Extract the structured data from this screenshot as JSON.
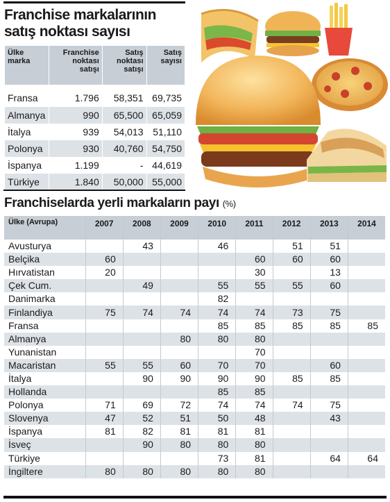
{
  "table1": {
    "title": "Franchise markalarının satış noktası sayısı",
    "headers": [
      "Ülke marka",
      "Franchise noktası satışı",
      "Satış noktası satışı",
      "Satış sayısı"
    ],
    "rows": [
      [
        "Fransa",
        "1.796",
        "58,351",
        "69,735"
      ],
      [
        "Almanya",
        "990",
        "65,500",
        "65,059"
      ],
      [
        "İtalya",
        "939",
        "54,013",
        "51,110"
      ],
      [
        "Polonya",
        "930",
        "40,760",
        "54,750"
      ],
      [
        "İspanya",
        "1.199",
        "-",
        "44,619"
      ],
      [
        "Türkiye",
        "1.840",
        "50,000",
        "55,000"
      ]
    ]
  },
  "table2": {
    "title": "Franchiselarda yerli markaların payı",
    "unit": "(%)",
    "headers": [
      "Ülke (Avrupa)",
      "2007",
      "2008",
      "2009",
      "2010",
      "2011",
      "2012",
      "2013",
      "2014"
    ],
    "rows": [
      [
        "Avusturya",
        "",
        "43",
        "",
        "46",
        "",
        "51",
        "51",
        ""
      ],
      [
        "Belçika",
        "60",
        "",
        "",
        "",
        "60",
        "60",
        "60",
        ""
      ],
      [
        "Hırvatistan",
        "20",
        "",
        "",
        "",
        "30",
        "",
        "13",
        ""
      ],
      [
        "Çek Cum.",
        "",
        "49",
        "",
        "55",
        "55",
        "55",
        "60",
        ""
      ],
      [
        "Danimarka",
        "",
        "",
        "",
        "82",
        "",
        "",
        "",
        ""
      ],
      [
        "Finlandiya",
        "75",
        "74",
        "74",
        "74",
        "74",
        "73",
        "75",
        ""
      ],
      [
        "Fransa",
        "",
        "",
        "",
        "85",
        "85",
        "85",
        "85",
        "85"
      ],
      [
        "Almanya",
        "",
        "",
        "80",
        "80",
        "80",
        "",
        "",
        ""
      ],
      [
        "Yunanistan",
        "",
        "",
        "",
        "",
        "70",
        "",
        "",
        ""
      ],
      [
        "Macaristan",
        "55",
        "55",
        "60",
        "70",
        "70",
        "",
        "60",
        ""
      ],
      [
        "İtalya",
        "",
        "90",
        "90",
        "90",
        "90",
        "85",
        "85",
        ""
      ],
      [
        "Hollanda",
        "",
        "",
        "",
        "85",
        "85",
        "",
        "",
        ""
      ],
      [
        "Polonya",
        "71",
        "69",
        "72",
        "74",
        "74",
        "74",
        "75",
        ""
      ],
      [
        "Slovenya",
        "47",
        "52",
        "51",
        "50",
        "48",
        "",
        "43",
        ""
      ],
      [
        "İspanya",
        "81",
        "82",
        "81",
        "81",
        "81",
        "",
        "",
        ""
      ],
      [
        "İsveç",
        "",
        "90",
        "80",
        "80",
        "80",
        "",
        "",
        ""
      ],
      [
        "Türkiye",
        "",
        "",
        "",
        "73",
        "81",
        "",
        "64",
        "64"
      ],
      [
        "İngiltere",
        "80",
        "80",
        "80",
        "80",
        "80",
        "",
        "",
        ""
      ]
    ]
  },
  "illustration": {
    "icons": [
      "taco-icon",
      "burger-icon",
      "fries-icon",
      "pizza-icon",
      "sandwich-icon"
    ]
  },
  "colors": {
    "header_bg": "#c7ced5",
    "stripe": "#dde2e7",
    "rule": "#111111"
  }
}
